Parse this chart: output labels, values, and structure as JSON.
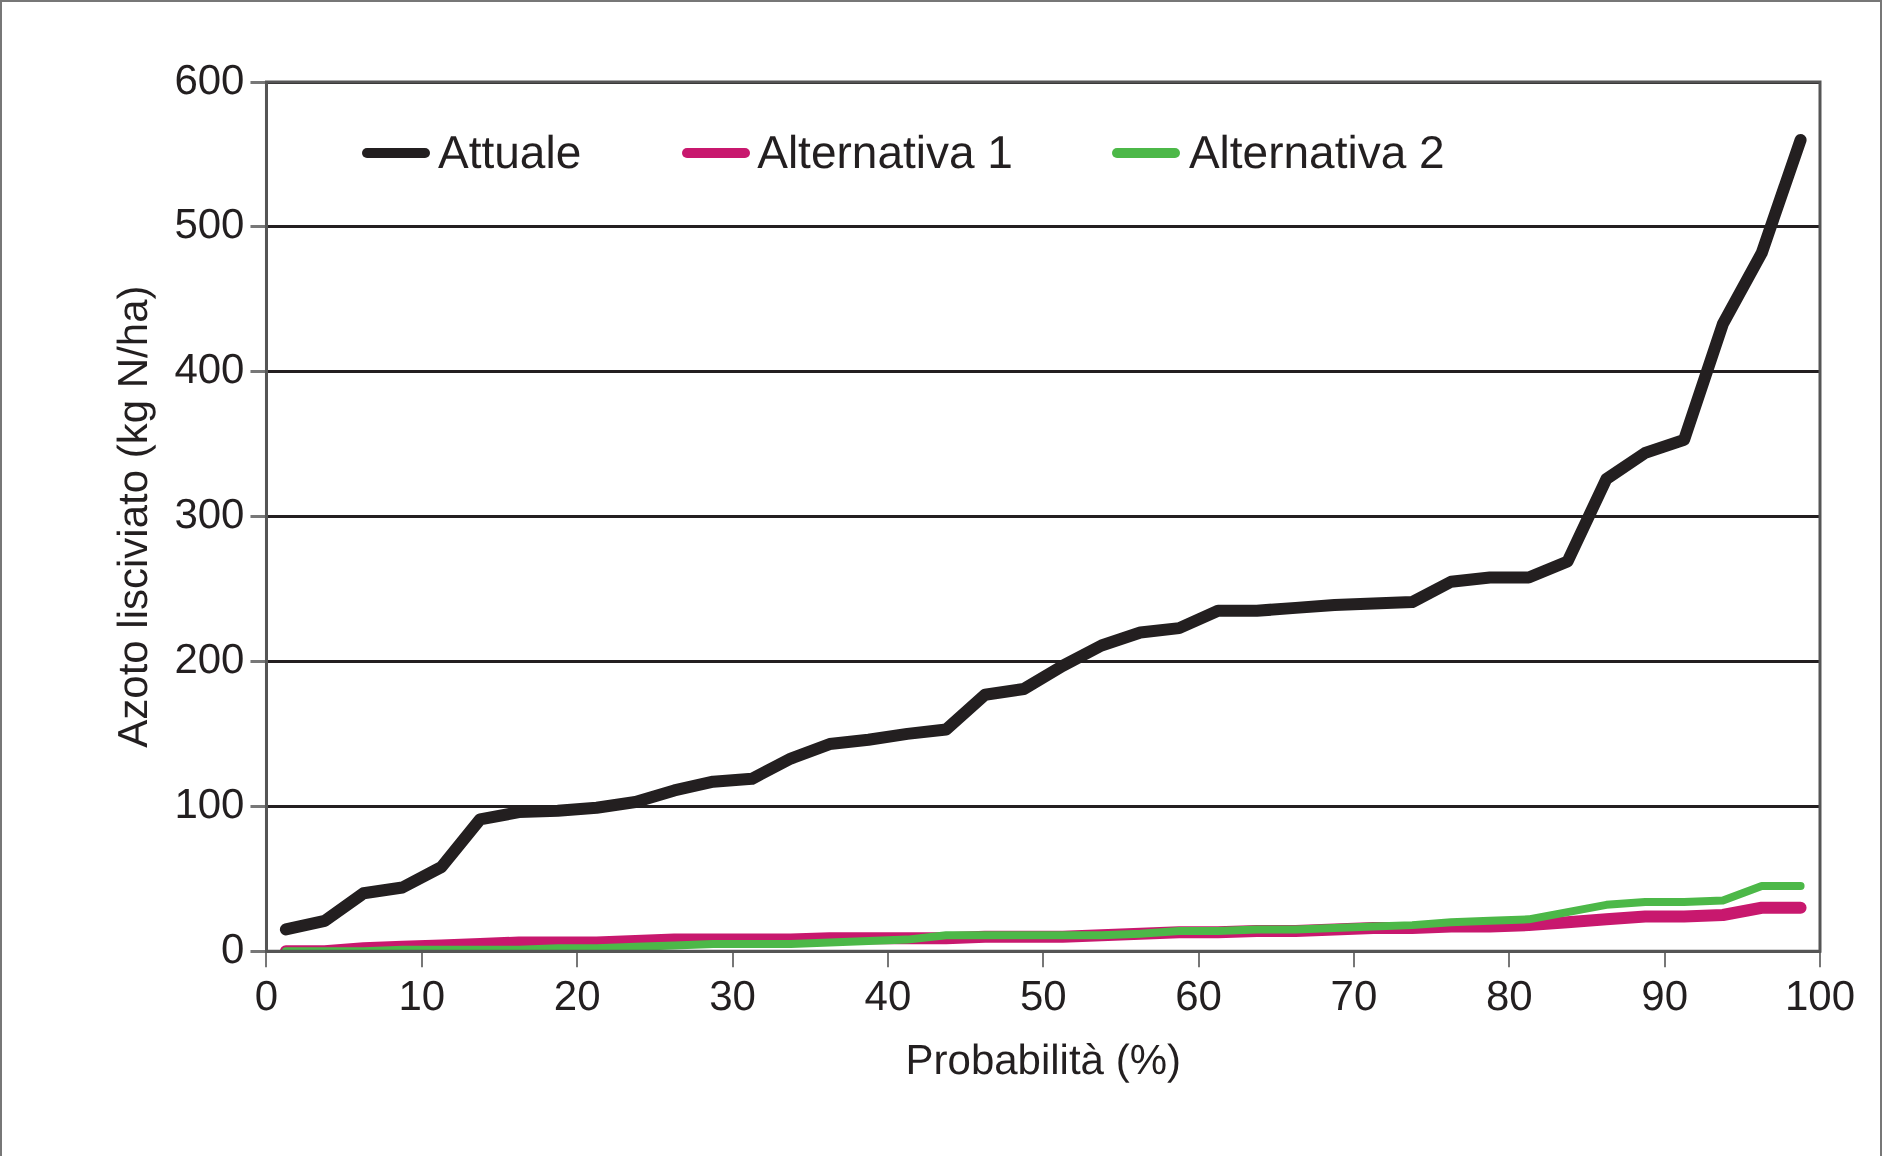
{
  "chart_data": {
    "type": "line",
    "xlabel": "Probabilità (%)",
    "ylabel": "Azoto lisciviato (kg N/ha)",
    "x": [
      1.25,
      3.75,
      6.25,
      8.75,
      11.25,
      13.75,
      16.25,
      18.75,
      21.25,
      23.75,
      26.25,
      28.75,
      31.25,
      33.75,
      36.25,
      38.75,
      41.25,
      43.75,
      46.25,
      48.75,
      51.25,
      53.75,
      56.25,
      58.75,
      61.25,
      63.75,
      66.25,
      68.75,
      71.25,
      73.75,
      76.25,
      78.75,
      81.25,
      83.75,
      86.25,
      88.75,
      91.25,
      93.75,
      96.25,
      98.75
    ],
    "series": [
      {
        "name": "Attuale",
        "color": "#231f20",
        "values": [
          15,
          21,
          40,
          44,
          58,
          91,
          96,
          97,
          99,
          103,
          111,
          117,
          119,
          133,
          143,
          146,
          150,
          153,
          177,
          181,
          197,
          211,
          220,
          223,
          235,
          235,
          237,
          239,
          240,
          241,
          255,
          258,
          258,
          269,
          326,
          344,
          353,
          433,
          482,
          560
        ]
      },
      {
        "name": "Alternativa 1",
        "color": "#c8186e",
        "values": [
          0,
          0,
          2,
          3,
          4,
          5,
          6,
          6,
          6,
          7,
          8,
          8,
          8,
          8,
          9,
          9,
          9,
          9,
          10,
          10,
          10,
          11,
          12,
          13,
          13,
          14,
          14,
          15,
          16,
          16,
          17,
          17,
          18,
          20,
          22,
          24,
          24,
          25,
          30,
          30
        ]
      },
      {
        "name": "Alternativa 2",
        "color": "#4cb848",
        "values": [
          0,
          0,
          0,
          1,
          1,
          1,
          1,
          2,
          2,
          3,
          4,
          5,
          5,
          5,
          6,
          7,
          8,
          11,
          11,
          11,
          11,
          11,
          12,
          14,
          14,
          15,
          15,
          16,
          17,
          18,
          20,
          21,
          22,
          27,
          32,
          34,
          34,
          35,
          45,
          45
        ]
      }
    ],
    "xlim": [
      0,
      100
    ],
    "xticks": [
      0,
      10,
      20,
      30,
      40,
      50,
      60,
      70,
      80,
      90,
      100
    ],
    "ylim": [
      0,
      600
    ],
    "yticks": [
      0,
      100,
      200,
      300,
      400,
      500,
      600
    ],
    "grid": "y",
    "legend": "top",
    "marker": "none",
    "line_style": "solid"
  }
}
